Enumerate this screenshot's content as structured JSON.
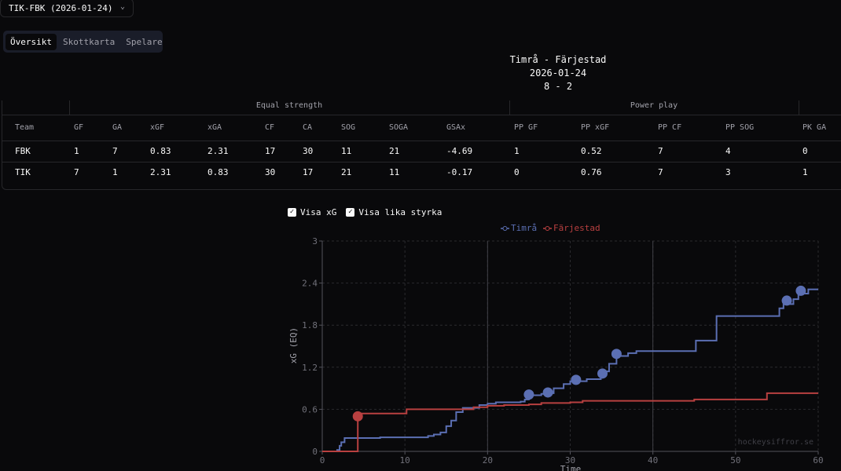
{
  "game_select": {
    "value": "TIK-FBK (2026-01-24)",
    "chevron_icon": "chevron-down-icon"
  },
  "tabs": [
    {
      "label": "Översikt",
      "active": true
    },
    {
      "label": "Skottkarta",
      "active": false
    },
    {
      "label": "Spelare",
      "active": false
    }
  ],
  "header": {
    "matchup": "Timrå - Färjestad",
    "date": "2026-01-24",
    "score": "8 - 2"
  },
  "stats": {
    "groups": {
      "equal": "Equal strength",
      "power": "Power play"
    },
    "columns": [
      "Team",
      "GF",
      "GA",
      "xGF",
      "xGA",
      "CF",
      "CA",
      "SOG",
      "SOGA",
      "GSAx",
      "PP GF",
      "PP xGF",
      "PP CF",
      "PP SOG",
      "PK GA"
    ],
    "rows": [
      [
        "FBK",
        "1",
        "7",
        "0.83",
        "2.31",
        "17",
        "30",
        "11",
        "21",
        "-4.69",
        "1",
        "0.52",
        "7",
        "4",
        "0"
      ],
      [
        "TIK",
        "7",
        "1",
        "2.31",
        "0.83",
        "30",
        "17",
        "21",
        "11",
        "-0.17",
        "0",
        "0.76",
        "7",
        "3",
        "1"
      ]
    ]
  },
  "toggles": {
    "show_xg": "Visa xG",
    "show_even_strength": "Visa lika styrka",
    "check_icon": "check-icon"
  },
  "chart_data": {
    "type": "line",
    "step": true,
    "title": "",
    "xlabel": "Time",
    "ylabel": "xG (EQ)",
    "xlim": [
      0,
      60
    ],
    "ylim": [
      0,
      3
    ],
    "x_ticks": [
      0,
      10,
      20,
      30,
      40,
      50,
      60
    ],
    "y_ticks": [
      "0",
      "0.6",
      "1.2",
      "1.8",
      "2.4",
      "3"
    ],
    "legend_position": "top",
    "watermark": "hockeysiffror.se",
    "series": [
      {
        "name": "Timrå",
        "color": "#5b6fb3",
        "points": [
          [
            0,
            0
          ],
          [
            1.8,
            0.02
          ],
          [
            2.1,
            0.08
          ],
          [
            2.3,
            0.13
          ],
          [
            2.7,
            0.19
          ],
          [
            5,
            0.19
          ],
          [
            7,
            0.2
          ],
          [
            11.5,
            0.2
          ],
          [
            12.8,
            0.22
          ],
          [
            13.5,
            0.24
          ],
          [
            14.3,
            0.27
          ],
          [
            15,
            0.36
          ],
          [
            15.6,
            0.44
          ],
          [
            16.2,
            0.56
          ],
          [
            17,
            0.62
          ],
          [
            19,
            0.66
          ],
          [
            20,
            0.68
          ],
          [
            21,
            0.7
          ],
          [
            24,
            0.71
          ],
          [
            24.5,
            0.74
          ],
          [
            25,
            0.8
          ],
          [
            26.5,
            0.82
          ],
          [
            27,
            0.83
          ],
          [
            28,
            0.9
          ],
          [
            29.2,
            0.96
          ],
          [
            30,
            1.0
          ],
          [
            32,
            1.03
          ],
          [
            33.7,
            1.09
          ],
          [
            34.1,
            1.14
          ],
          [
            34.7,
            1.25
          ],
          [
            35.6,
            1.36
          ],
          [
            37,
            1.4
          ],
          [
            38,
            1.43
          ],
          [
            45,
            1.43
          ],
          [
            45.2,
            1.58
          ],
          [
            47.5,
            1.58
          ],
          [
            47.7,
            1.93
          ],
          [
            55,
            1.93
          ],
          [
            55.3,
            2.04
          ],
          [
            55.8,
            2.1
          ],
          [
            57,
            2.17
          ],
          [
            57.6,
            2.25
          ],
          [
            58.8,
            2.31
          ],
          [
            60,
            2.31
          ]
        ],
        "goals": [
          [
            25,
            0.81
          ],
          [
            27.3,
            0.84
          ],
          [
            30.7,
            1.02
          ],
          [
            33.9,
            1.11
          ],
          [
            35.6,
            1.39
          ],
          [
            56.2,
            2.15
          ],
          [
            57.9,
            2.29
          ]
        ]
      },
      {
        "name": "Färjestad",
        "color": "#b84040",
        "points": [
          [
            0,
            0
          ],
          [
            4.2,
            0
          ],
          [
            4.3,
            0.54
          ],
          [
            10,
            0.54
          ],
          [
            10.2,
            0.6
          ],
          [
            18,
            0.6
          ],
          [
            18.3,
            0.63
          ],
          [
            20,
            0.65
          ],
          [
            22,
            0.66
          ],
          [
            25,
            0.67
          ],
          [
            26.5,
            0.69
          ],
          [
            30,
            0.7
          ],
          [
            31.5,
            0.72
          ],
          [
            38,
            0.72
          ],
          [
            44,
            0.72
          ],
          [
            45,
            0.74
          ],
          [
            53.5,
            0.74
          ],
          [
            53.8,
            0.83
          ],
          [
            60,
            0.83
          ]
        ],
        "goals": [
          [
            4.3,
            0.5
          ]
        ]
      }
    ]
  }
}
